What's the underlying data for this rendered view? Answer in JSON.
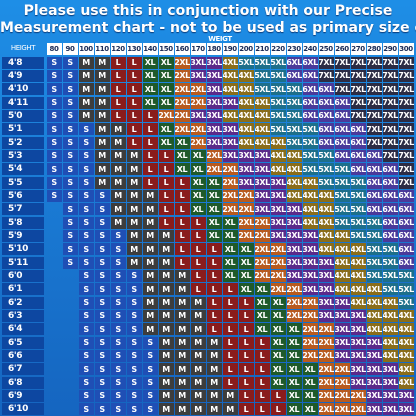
{
  "title_lines": [
    "Please use this in conjunction with our Precise",
    "Measurement chart - not to be used as primary size chart"
  ],
  "weight_label": "WEIGT",
  "height_label": "HEIGHT",
  "weights": [
    "80",
    "90",
    "100",
    "110",
    "120",
    "130",
    "140",
    "150",
    "160",
    "170",
    "180",
    "190",
    "200",
    "210",
    "220",
    "230",
    "240",
    "250",
    "260",
    "270",
    "280",
    "290",
    "300"
  ],
  "size_colors": {
    "S": "#1f4fb5",
    "M": "#3d3d3d",
    "L": "#8a1c1c",
    "XL": "#1f5a2a",
    "2XL": "#b85a1e",
    "3XL": "#5b2a8a",
    "4XL": "#8a6d1a",
    "5XL": "#1d6f8a",
    "6XL": "#4a3a9a",
    "7XL": "#2c2c44"
  },
  "rows": [
    {
      "height": "4'8",
      "sizes": [
        "S",
        "S",
        "M",
        "M",
        "L",
        "L",
        "XL",
        "XL",
        "2XL",
        "3XL",
        "3XL",
        "4XL",
        "5XL",
        "5XL",
        "5XL",
        "6XL",
        "6XL",
        "7XL",
        "7XL",
        "7XL",
        "7XL",
        "7XL",
        "7XL"
      ]
    },
    {
      "height": "4'9",
      "sizes": [
        "S",
        "S",
        "M",
        "M",
        "L",
        "L",
        "XL",
        "XL",
        "2XL",
        "3XL",
        "3XL",
        "4XL",
        "4XL",
        "5XL",
        "5XL",
        "6XL",
        "6XL",
        "7XL",
        "7XL",
        "7XL",
        "7XL",
        "7XL",
        "7XL"
      ]
    },
    {
      "height": "4'10",
      "sizes": [
        "S",
        "S",
        "M",
        "M",
        "L",
        "L",
        "XL",
        "XL",
        "2XL",
        "2XL",
        "3XL",
        "4XL",
        "4XL",
        "5XL",
        "5XL",
        "5XL",
        "6XL",
        "6XL",
        "7XL",
        "7XL",
        "7XL",
        "7XL",
        "7XL"
      ]
    },
    {
      "height": "4'11",
      "sizes": [
        "S",
        "S",
        "M",
        "M",
        "L",
        "L",
        "XL",
        "XL",
        "2XL",
        "2XL",
        "3XL",
        "3XL",
        "4XL",
        "4XL",
        "5XL",
        "5XL",
        "6XL",
        "6XL",
        "6XL",
        "7XL",
        "7XL",
        "7XL",
        "7XL"
      ]
    },
    {
      "height": "5'0",
      "sizes": [
        "S",
        "S",
        "M",
        "M",
        "L",
        "L",
        "L",
        "2XL",
        "2XL",
        "3XL",
        "3XL",
        "4XL",
        "4XL",
        "4XL",
        "5XL",
        "5XL",
        "6XL",
        "6XL",
        "6XL",
        "7XL",
        "7XL",
        "7XL",
        "7XL"
      ]
    },
    {
      "height": "5'1",
      "sizes": [
        "S",
        "S",
        "S",
        "M",
        "M",
        "L",
        "L",
        "XL",
        "2XL",
        "2XL",
        "3XL",
        "3XL",
        "4XL",
        "4XL",
        "5XL",
        "5XL",
        "5XL",
        "6XL",
        "6XL",
        "6XL",
        "7XL",
        "7XL",
        "7XL"
      ]
    },
    {
      "height": "5'2",
      "sizes": [
        "S",
        "S",
        "S",
        "M",
        "M",
        "L",
        "L",
        "XL",
        "XL",
        "2XL",
        "3XL",
        "3XL",
        "4XL",
        "4XL",
        "4XL",
        "5XL",
        "5XL",
        "6XL",
        "6XL",
        "6XL",
        "7XL",
        "7XL",
        "7XL"
      ]
    },
    {
      "height": "5'3",
      "sizes": [
        "S",
        "S",
        "S",
        "M",
        "M",
        "M",
        "L",
        "L",
        "XL",
        "XL",
        "2XL",
        "3XL",
        "3XL",
        "3XL",
        "4XL",
        "4XL",
        "5XL",
        "5XL",
        "6XL",
        "6XL",
        "6XL",
        "7XL",
        "7XL"
      ]
    },
    {
      "height": "5'4",
      "sizes": [
        "S",
        "S",
        "S",
        "M",
        "M",
        "M",
        "L",
        "L",
        "XL",
        "XL",
        "2XL",
        "2XL",
        "3XL",
        "3XL",
        "4XL",
        "4XL",
        "5XL",
        "5XL",
        "5XL",
        "6XL",
        "6XL",
        "6XL",
        "7XL"
      ]
    },
    {
      "height": "5'5",
      "sizes": [
        "S",
        "S",
        "S",
        "M",
        "M",
        "M",
        "L",
        "L",
        "L",
        "XL",
        "XL",
        "2XL",
        "3XL",
        "3XL",
        "3XL",
        "4XL",
        "4XL",
        "5XL",
        "5XL",
        "5XL",
        "6XL",
        "6XL",
        "7XL"
      ]
    },
    {
      "height": "5'6",
      "sizes": [
        "S",
        "S",
        "S",
        "S",
        "M",
        "M",
        "M",
        "L",
        "L",
        "XL",
        "XL",
        "2XL",
        "2XL",
        "3XL",
        "3XL",
        "4XL",
        "4XL",
        "4XL",
        "5XL",
        "5XL",
        "6XL",
        "6XL",
        "6XL"
      ]
    },
    {
      "height": "5'7",
      "sizes": [
        null,
        "S",
        "S",
        "S",
        "M",
        "M",
        "M",
        "L",
        "L",
        "XL",
        "XL",
        "2XL",
        "2XL",
        "3XL",
        "3XL",
        "3XL",
        "4XL",
        "4XL",
        "5XL",
        "5XL",
        "6XL",
        "6XL",
        "6XL"
      ]
    },
    {
      "height": "5'8",
      "sizes": [
        null,
        "S",
        "S",
        "S",
        "M",
        "M",
        "M",
        "L",
        "L",
        "L",
        "XL",
        "XL",
        "2XL",
        "2XL",
        "3XL",
        "3XL",
        "4XL",
        "4XL",
        "5XL",
        "5XL",
        "5XL",
        "6XL",
        "6XL"
      ]
    },
    {
      "height": "5'9",
      "sizes": [
        null,
        "S",
        "S",
        "S",
        "S",
        "M",
        "M",
        "M",
        "L",
        "L",
        "XL",
        "XL",
        "2XL",
        "2XL",
        "3XL",
        "3XL",
        "3XL",
        "4XL",
        "4XL",
        "5XL",
        "5XL",
        "6XL",
        "6XL"
      ]
    },
    {
      "height": "5'10",
      "sizes": [
        null,
        "S",
        "S",
        "S",
        "S",
        "M",
        "M",
        "M",
        "L",
        "L",
        "L",
        "XL",
        "XL",
        "2XL",
        "2XL",
        "3XL",
        "3XL",
        "4XL",
        "4XL",
        "4XL",
        "5XL",
        "5XL",
        "6XL"
      ]
    },
    {
      "height": "5'11",
      "sizes": [
        null,
        "S",
        "S",
        "S",
        "S",
        "M",
        "M",
        "M",
        "L",
        "L",
        "L",
        "XL",
        "XL",
        "2XL",
        "2XL",
        "3XL",
        "3XL",
        "3XL",
        "4XL",
        "4XL",
        "5XL",
        "5XL",
        "6XL"
      ]
    },
    {
      "height": "6'0",
      "sizes": [
        null,
        null,
        "S",
        "S",
        "S",
        "S",
        "M",
        "M",
        "M",
        "L",
        "L",
        "XL",
        "XL",
        "2XL",
        "2XL",
        "3XL",
        "3XL",
        "3XL",
        "4XL",
        "4XL",
        "5XL",
        "5XL",
        "5XL"
      ]
    },
    {
      "height": "6'1",
      "sizes": [
        null,
        null,
        "S",
        "S",
        "S",
        "S",
        "M",
        "M",
        "M",
        "L",
        "L",
        "L",
        "XL",
        "XL",
        "2XL",
        "2XL",
        "3XL",
        "3XL",
        "4XL",
        "4XL",
        "4XL",
        "5XL",
        "5XL"
      ]
    },
    {
      "height": "6'2",
      "sizes": [
        null,
        null,
        "S",
        "S",
        "S",
        "S",
        "M",
        "M",
        "M",
        "M",
        "L",
        "L",
        "L",
        "XL",
        "XL",
        "2XL",
        "2XL",
        "3XL",
        "3XL",
        "4XL",
        "4XL",
        "4XL",
        "5XL"
      ]
    },
    {
      "height": "6'3",
      "sizes": [
        null,
        null,
        "S",
        "S",
        "S",
        "S",
        "M",
        "M",
        "M",
        "M",
        "L",
        "L",
        "L",
        "XL",
        "XL",
        "2XL",
        "2XL",
        "3XL",
        "3XL",
        "3XL",
        "4XL",
        "4XL",
        "4XL"
      ]
    },
    {
      "height": "6'4",
      "sizes": [
        null,
        null,
        "S",
        "S",
        "S",
        "S",
        "M",
        "M",
        "M",
        "M",
        "L",
        "L",
        "L",
        "XL",
        "XL",
        "XL",
        "2XL",
        "2XL",
        "3XL",
        "3XL",
        "4XL",
        "4XL",
        "4XL"
      ]
    },
    {
      "height": "6'5",
      "sizes": [
        null,
        null,
        "S",
        "S",
        "S",
        "S",
        "S",
        "M",
        "M",
        "M",
        "M",
        "L",
        "L",
        "L",
        "XL",
        "XL",
        "2XL",
        "2XL",
        "3XL",
        "3XL",
        "3XL",
        "4XL",
        "4XL"
      ]
    },
    {
      "height": "6'6",
      "sizes": [
        null,
        null,
        "S",
        "S",
        "S",
        "S",
        "S",
        "M",
        "M",
        "M",
        "M",
        "L",
        "L",
        "L",
        "XL",
        "XL",
        "2XL",
        "2XL",
        "3XL",
        "3XL",
        "3XL",
        "4XL",
        "4XL"
      ]
    },
    {
      "height": "6'7",
      "sizes": [
        null,
        null,
        "S",
        "S",
        "S",
        "S",
        "S",
        "M",
        "M",
        "M",
        "M",
        "L",
        "L",
        "L",
        "XL",
        "XL",
        "XL",
        "2XL",
        "2XL",
        "3XL",
        "3XL",
        "3XL",
        "4XL"
      ]
    },
    {
      "height": "6'8",
      "sizes": [
        null,
        null,
        "S",
        "S",
        "S",
        "S",
        "S",
        "M",
        "M",
        "M",
        "M",
        "L",
        "L",
        "L",
        "XL",
        "XL",
        "XL",
        "2XL",
        "2XL",
        "3XL",
        "3XL",
        "3XL",
        "4XL"
      ]
    },
    {
      "height": "6'9",
      "sizes": [
        null,
        null,
        "S",
        "S",
        "S",
        "S",
        "S",
        "M",
        "M",
        "M",
        "M",
        "M",
        "L",
        "L",
        "L",
        "XL",
        "XL",
        "2XL",
        "2XL",
        "2XL",
        "3XL",
        "3XL",
        "3XL"
      ]
    },
    {
      "height": "6'10",
      "sizes": [
        null,
        null,
        "S",
        "S",
        "S",
        "S",
        "S",
        "M",
        "M",
        "M",
        "M",
        "M",
        "L",
        "L",
        "L",
        "XL",
        "XL",
        "2XL",
        "2XL",
        "2XL",
        "3XL",
        "3XL",
        "3XL"
      ]
    }
  ]
}
